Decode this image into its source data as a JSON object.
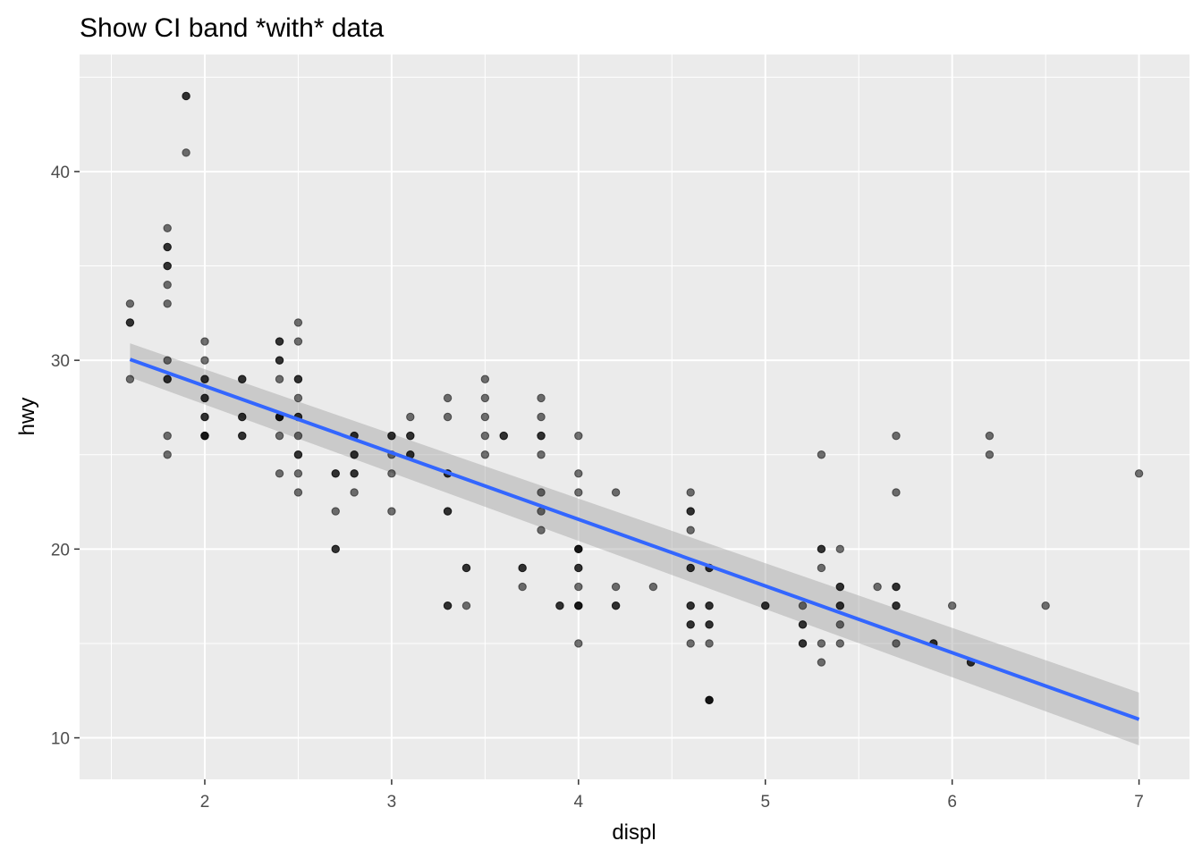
{
  "chart_data": {
    "type": "scatter",
    "title": "Show CI band *with* data",
    "xlabel": "displ",
    "ylabel": "hwy",
    "xlim": [
      1.33,
      7.27
    ],
    "ylim": [
      7.8,
      46.2
    ],
    "x_ticks": [
      2,
      3,
      4,
      5,
      6,
      7
    ],
    "y_ticks": [
      10,
      20,
      30,
      40
    ],
    "x_tick_labels": [
      "2",
      "3",
      "4",
      "5",
      "6",
      "7"
    ],
    "y_tick_labels": [
      "10",
      "20",
      "30",
      "40"
    ],
    "grid": true,
    "legend": "none",
    "points": [
      {
        "x": 1.6,
        "y": 33
      },
      {
        "x": 1.6,
        "y": 32
      },
      {
        "x": 1.6,
        "y": 32
      },
      {
        "x": 1.6,
        "y": 29
      },
      {
        "x": 1.8,
        "y": 37
      },
      {
        "x": 1.8,
        "y": 36
      },
      {
        "x": 1.8,
        "y": 36
      },
      {
        "x": 1.8,
        "y": 35
      },
      {
        "x": 1.8,
        "y": 35
      },
      {
        "x": 1.8,
        "y": 34
      },
      {
        "x": 1.8,
        "y": 33
      },
      {
        "x": 1.8,
        "y": 30
      },
      {
        "x": 1.8,
        "y": 29
      },
      {
        "x": 1.8,
        "y": 29
      },
      {
        "x": 1.8,
        "y": 26
      },
      {
        "x": 1.8,
        "y": 25
      },
      {
        "x": 1.9,
        "y": 44
      },
      {
        "x": 1.9,
        "y": 44
      },
      {
        "x": 1.9,
        "y": 41
      },
      {
        "x": 2.0,
        "y": 31
      },
      {
        "x": 2.0,
        "y": 30
      },
      {
        "x": 2.0,
        "y": 29
      },
      {
        "x": 2.0,
        "y": 29
      },
      {
        "x": 2.0,
        "y": 28
      },
      {
        "x": 2.0,
        "y": 28
      },
      {
        "x": 2.0,
        "y": 27
      },
      {
        "x": 2.0,
        "y": 27
      },
      {
        "x": 2.0,
        "y": 26
      },
      {
        "x": 2.0,
        "y": 26
      },
      {
        "x": 2.0,
        "y": 26
      },
      {
        "x": 2.2,
        "y": 29
      },
      {
        "x": 2.2,
        "y": 29
      },
      {
        "x": 2.2,
        "y": 27
      },
      {
        "x": 2.2,
        "y": 27
      },
      {
        "x": 2.2,
        "y": 26
      },
      {
        "x": 2.2,
        "y": 26
      },
      {
        "x": 2.4,
        "y": 31
      },
      {
        "x": 2.4,
        "y": 31
      },
      {
        "x": 2.4,
        "y": 30
      },
      {
        "x": 2.4,
        "y": 30
      },
      {
        "x": 2.4,
        "y": 29
      },
      {
        "x": 2.4,
        "y": 27
      },
      {
        "x": 2.4,
        "y": 27
      },
      {
        "x": 2.4,
        "y": 27
      },
      {
        "x": 2.4,
        "y": 26
      },
      {
        "x": 2.4,
        "y": 24
      },
      {
        "x": 2.5,
        "y": 32
      },
      {
        "x": 2.5,
        "y": 31
      },
      {
        "x": 2.5,
        "y": 29
      },
      {
        "x": 2.5,
        "y": 29
      },
      {
        "x": 2.5,
        "y": 28
      },
      {
        "x": 2.5,
        "y": 27
      },
      {
        "x": 2.5,
        "y": 27
      },
      {
        "x": 2.5,
        "y": 26
      },
      {
        "x": 2.5,
        "y": 25
      },
      {
        "x": 2.5,
        "y": 25
      },
      {
        "x": 2.5,
        "y": 24
      },
      {
        "x": 2.5,
        "y": 23
      },
      {
        "x": 2.7,
        "y": 24
      },
      {
        "x": 2.7,
        "y": 24
      },
      {
        "x": 2.7,
        "y": 22
      },
      {
        "x": 2.7,
        "y": 20
      },
      {
        "x": 2.7,
        "y": 20
      },
      {
        "x": 2.8,
        "y": 26
      },
      {
        "x": 2.8,
        "y": 26
      },
      {
        "x": 2.8,
        "y": 25
      },
      {
        "x": 2.8,
        "y": 25
      },
      {
        "x": 2.8,
        "y": 24
      },
      {
        "x": 2.8,
        "y": 24
      },
      {
        "x": 2.8,
        "y": 23
      },
      {
        "x": 3.0,
        "y": 26
      },
      {
        "x": 3.0,
        "y": 26
      },
      {
        "x": 3.0,
        "y": 25
      },
      {
        "x": 3.0,
        "y": 24
      },
      {
        "x": 3.0,
        "y": 22
      },
      {
        "x": 3.1,
        "y": 27
      },
      {
        "x": 3.1,
        "y": 26
      },
      {
        "x": 3.1,
        "y": 26
      },
      {
        "x": 3.1,
        "y": 25
      },
      {
        "x": 3.1,
        "y": 25
      },
      {
        "x": 3.3,
        "y": 28
      },
      {
        "x": 3.3,
        "y": 27
      },
      {
        "x": 3.3,
        "y": 24
      },
      {
        "x": 3.3,
        "y": 24
      },
      {
        "x": 3.3,
        "y": 22
      },
      {
        "x": 3.3,
        "y": 22
      },
      {
        "x": 3.3,
        "y": 17
      },
      {
        "x": 3.3,
        "y": 17
      },
      {
        "x": 3.4,
        "y": 19
      },
      {
        "x": 3.4,
        "y": 19
      },
      {
        "x": 3.4,
        "y": 17
      },
      {
        "x": 3.5,
        "y": 29
      },
      {
        "x": 3.5,
        "y": 28
      },
      {
        "x": 3.5,
        "y": 27
      },
      {
        "x": 3.5,
        "y": 26
      },
      {
        "x": 3.5,
        "y": 25
      },
      {
        "x": 3.6,
        "y": 26
      },
      {
        "x": 3.6,
        "y": 26
      },
      {
        "x": 3.7,
        "y": 19
      },
      {
        "x": 3.7,
        "y": 19
      },
      {
        "x": 3.7,
        "y": 18
      },
      {
        "x": 3.8,
        "y": 28
      },
      {
        "x": 3.8,
        "y": 27
      },
      {
        "x": 3.8,
        "y": 26
      },
      {
        "x": 3.8,
        "y": 26
      },
      {
        "x": 3.8,
        "y": 25
      },
      {
        "x": 3.8,
        "y": 23
      },
      {
        "x": 3.8,
        "y": 22
      },
      {
        "x": 3.8,
        "y": 21
      },
      {
        "x": 3.9,
        "y": 17
      },
      {
        "x": 3.9,
        "y": 17
      },
      {
        "x": 4.0,
        "y": 26
      },
      {
        "x": 4.0,
        "y": 24
      },
      {
        "x": 4.0,
        "y": 23
      },
      {
        "x": 4.0,
        "y": 20
      },
      {
        "x": 4.0,
        "y": 20
      },
      {
        "x": 4.0,
        "y": 20
      },
      {
        "x": 4.0,
        "y": 19
      },
      {
        "x": 4.0,
        "y": 19
      },
      {
        "x": 4.0,
        "y": 18
      },
      {
        "x": 4.0,
        "y": 17
      },
      {
        "x": 4.0,
        "y": 17
      },
      {
        "x": 4.0,
        "y": 17
      },
      {
        "x": 4.0,
        "y": 15
      },
      {
        "x": 4.2,
        "y": 23
      },
      {
        "x": 4.2,
        "y": 18
      },
      {
        "x": 4.2,
        "y": 17
      },
      {
        "x": 4.2,
        "y": 17
      },
      {
        "x": 4.4,
        "y": 18
      },
      {
        "x": 4.6,
        "y": 23
      },
      {
        "x": 4.6,
        "y": 22
      },
      {
        "x": 4.6,
        "y": 22
      },
      {
        "x": 4.6,
        "y": 21
      },
      {
        "x": 4.6,
        "y": 19
      },
      {
        "x": 4.6,
        "y": 19
      },
      {
        "x": 4.6,
        "y": 17
      },
      {
        "x": 4.6,
        "y": 17
      },
      {
        "x": 4.6,
        "y": 16
      },
      {
        "x": 4.6,
        "y": 16
      },
      {
        "x": 4.6,
        "y": 15
      },
      {
        "x": 4.7,
        "y": 19
      },
      {
        "x": 4.7,
        "y": 19
      },
      {
        "x": 4.7,
        "y": 17
      },
      {
        "x": 4.7,
        "y": 17
      },
      {
        "x": 4.7,
        "y": 16
      },
      {
        "x": 4.7,
        "y": 16
      },
      {
        "x": 4.7,
        "y": 15
      },
      {
        "x": 4.7,
        "y": 12
      },
      {
        "x": 4.7,
        "y": 12
      },
      {
        "x": 4.7,
        "y": 12
      },
      {
        "x": 5.0,
        "y": 17
      },
      {
        "x": 5.0,
        "y": 17
      },
      {
        "x": 5.2,
        "y": 17
      },
      {
        "x": 5.2,
        "y": 16
      },
      {
        "x": 5.2,
        "y": 16
      },
      {
        "x": 5.2,
        "y": 15
      },
      {
        "x": 5.2,
        "y": 15
      },
      {
        "x": 5.3,
        "y": 25
      },
      {
        "x": 5.3,
        "y": 20
      },
      {
        "x": 5.3,
        "y": 20
      },
      {
        "x": 5.3,
        "y": 19
      },
      {
        "x": 5.3,
        "y": 15
      },
      {
        "x": 5.3,
        "y": 14
      },
      {
        "x": 5.4,
        "y": 20
      },
      {
        "x": 5.4,
        "y": 18
      },
      {
        "x": 5.4,
        "y": 18
      },
      {
        "x": 5.4,
        "y": 17
      },
      {
        "x": 5.4,
        "y": 17
      },
      {
        "x": 5.4,
        "y": 16
      },
      {
        "x": 5.4,
        "y": 15
      },
      {
        "x": 5.6,
        "y": 18
      },
      {
        "x": 5.7,
        "y": 26
      },
      {
        "x": 5.7,
        "y": 23
      },
      {
        "x": 5.7,
        "y": 18
      },
      {
        "x": 5.7,
        "y": 18
      },
      {
        "x": 5.7,
        "y": 17
      },
      {
        "x": 5.7,
        "y": 17
      },
      {
        "x": 5.7,
        "y": 15
      },
      {
        "x": 5.9,
        "y": 15
      },
      {
        "x": 5.9,
        "y": 15
      },
      {
        "x": 6.0,
        "y": 17
      },
      {
        "x": 6.1,
        "y": 14
      },
      {
        "x": 6.1,
        "y": 14
      },
      {
        "x": 6.2,
        "y": 26
      },
      {
        "x": 6.2,
        "y": 25
      },
      {
        "x": 6.5,
        "y": 17
      },
      {
        "x": 7.0,
        "y": 24
      }
    ],
    "series": [
      {
        "x": [
          1.6,
          7.0
        ],
        "y": [
          30.05,
          10.98
        ],
        "ci_lower": [
          29.1,
          9.6
        ],
        "ci_upper": [
          30.9,
          12.4
        ]
      }
    ],
    "colors": {
      "point": "#000000",
      "line": "#3366ff",
      "band": "#999999",
      "panel": "#ebebeb",
      "grid": "#ffffff"
    }
  }
}
